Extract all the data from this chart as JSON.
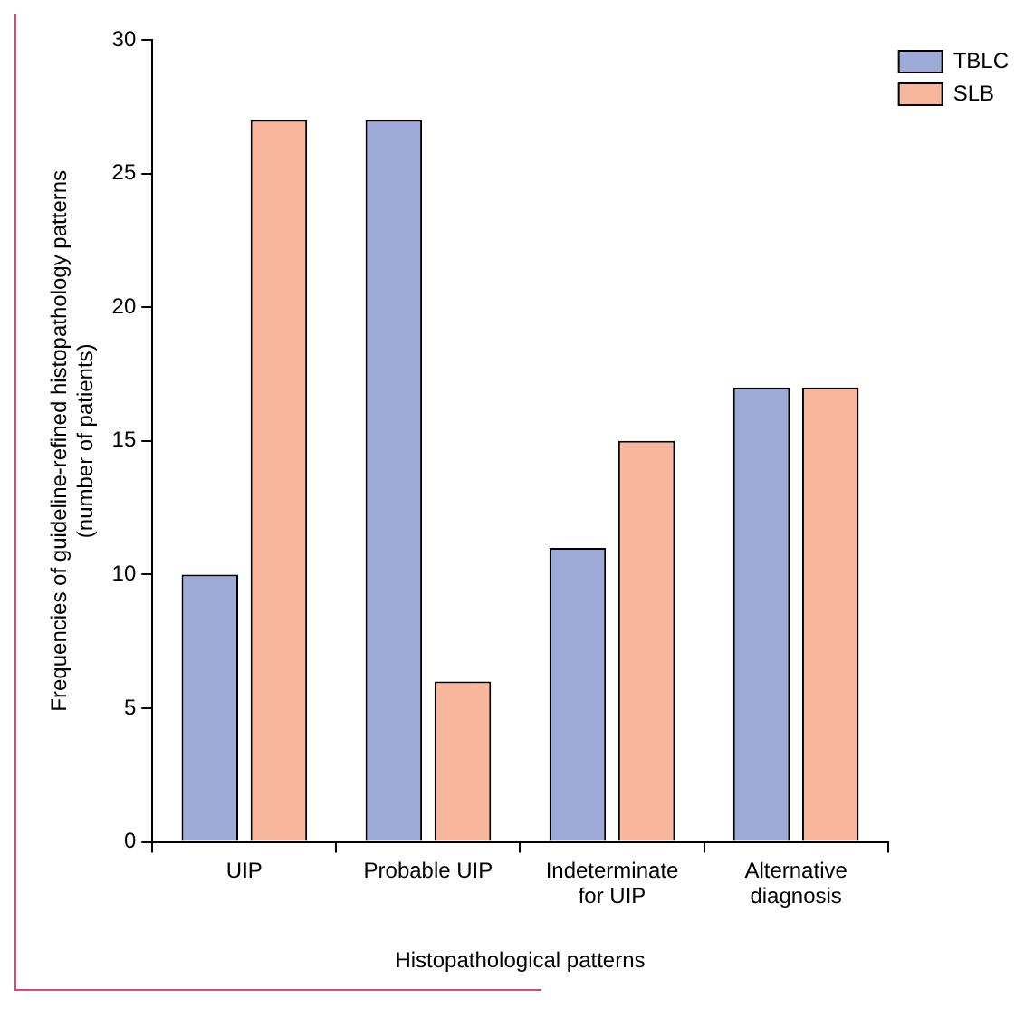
{
  "chart_data": {
    "type": "bar",
    "xlabel": "Histopathological patterns",
    "ylabel": "Frequencies of guideline-refined histopathology patterns (number of patients)",
    "categories": [
      "UIP",
      "Probable UIP",
      "Indeterminate for UIP",
      "Alternative diagnosis"
    ],
    "series": [
      {
        "name": "TBLC",
        "color": "#9da9d6",
        "values": [
          10,
          27,
          11,
          17
        ]
      },
      {
        "name": "SLB",
        "color": "#f8b69c",
        "values": [
          27,
          6,
          15,
          17
        ]
      }
    ],
    "ylim": [
      0,
      30
    ],
    "yticks": [
      0,
      5,
      10,
      15,
      20,
      25,
      30
    ],
    "grid": false,
    "legend": "top right"
  }
}
